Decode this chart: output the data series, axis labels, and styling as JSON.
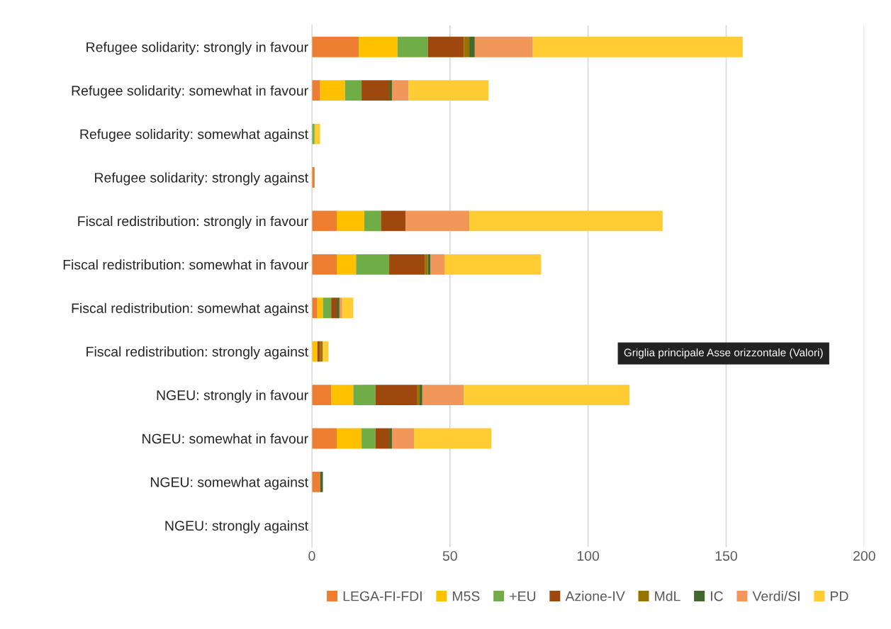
{
  "chart_data": {
    "type": "bar",
    "orientation": "horizontal",
    "stacked": true,
    "categories": [
      "Refugee solidarity: strongly in favour",
      "Refugee solidarity: somewhat in favour",
      "Refugee solidarity: somewhat against",
      "Refugee solidarity: strongly against",
      "Fiscal redistribution: strongly in favour",
      "Fiscal redistribution: somewhat in favour",
      "Fiscal redistribution: somewhat against",
      "Fiscal redistribution: strongly against",
      "NGEU: strongly in favour",
      "NGEU: somewhat in favour",
      "NGEU: somewhat against",
      "NGEU: strongly against"
    ],
    "series": [
      {
        "name": "LEGA-FI-FDI",
        "color": "#ed7d31",
        "values": [
          17,
          3,
          0,
          1,
          9,
          9,
          2,
          0,
          7,
          9,
          3,
          0
        ]
      },
      {
        "name": "M5S",
        "color": "#ffc000",
        "values": [
          14,
          9,
          0,
          0,
          10,
          7,
          2,
          2,
          8,
          9,
          0,
          0
        ]
      },
      {
        "name": "+EU",
        "color": "#70ad47",
        "values": [
          11,
          6,
          1,
          0,
          6,
          12,
          3,
          0,
          8,
          5,
          0,
          0
        ]
      },
      {
        "name": "Azione-IV",
        "color": "#9e480e",
        "values": [
          13,
          10,
          0,
          0,
          9,
          13,
          2,
          1,
          15,
          5,
          0,
          0
        ]
      },
      {
        "name": "MdL",
        "color": "#997300",
        "values": [
          2,
          0,
          0,
          0,
          0,
          1,
          0,
          1,
          1,
          0,
          0,
          0
        ]
      },
      {
        "name": "IC",
        "color": "#43682b",
        "values": [
          2,
          1,
          0,
          0,
          0,
          1,
          1,
          0,
          1,
          1,
          1,
          0
        ]
      },
      {
        "name": "Verdi/SI",
        "color": "#f1975a",
        "values": [
          21,
          6,
          0,
          0,
          23,
          5,
          1,
          0,
          15,
          8,
          0,
          0
        ]
      },
      {
        "name": "PD",
        "color": "#ffcd33",
        "values": [
          76,
          29,
          2,
          0,
          70,
          35,
          4,
          2,
          60,
          28,
          0,
          0
        ]
      }
    ],
    "xlim": [
      0,
      200
    ],
    "xticks": [
      0,
      50,
      100,
      150,
      200
    ],
    "grid": "x",
    "legend": "bottom",
    "annotations": [
      "Griglia principale Asse orizzontale (Valori)"
    ]
  }
}
